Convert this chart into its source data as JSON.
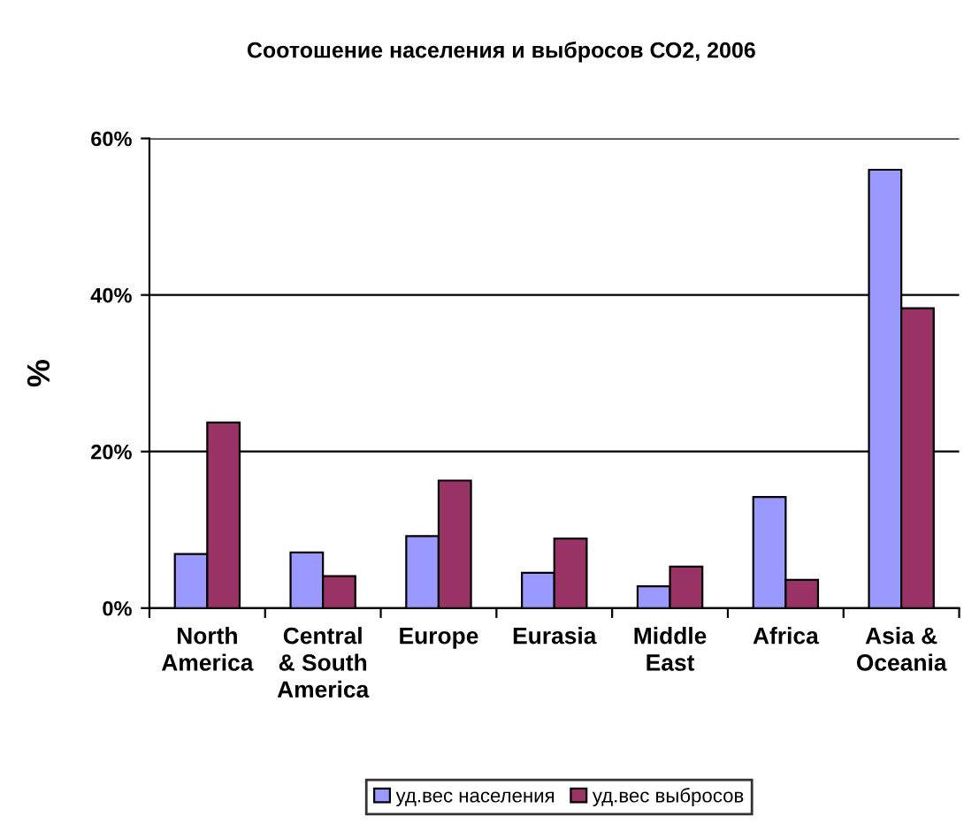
{
  "chart_data": {
    "type": "bar",
    "title": "Соотошение населения и выбросов СО2, 2006",
    "ylabel": "%",
    "categories": [
      "North\nAmerica",
      "Central\n& South\nAmerica",
      "Europe",
      "Eurasia",
      "Middle\nEast",
      "Africa",
      "Asia &\nOceania"
    ],
    "series": [
      {
        "name": "уд.вес населения",
        "color": "#9999ff",
        "values": [
          6.9,
          7.1,
          9.2,
          4.5,
          2.8,
          14.2,
          56.0
        ]
      },
      {
        "name": "уд.вес выбросов",
        "color": "#993366",
        "values": [
          23.7,
          4.1,
          16.3,
          8.9,
          5.3,
          3.6,
          38.3
        ]
      }
    ],
    "ylim": [
      0,
      60
    ],
    "yticks": [
      {
        "value": 0,
        "label": "0%"
      },
      {
        "value": 20,
        "label": "20%"
      },
      {
        "value": 40,
        "label": "40%"
      },
      {
        "value": 60,
        "label": "60%"
      }
    ],
    "grid": "y",
    "legend": "bottom"
  }
}
